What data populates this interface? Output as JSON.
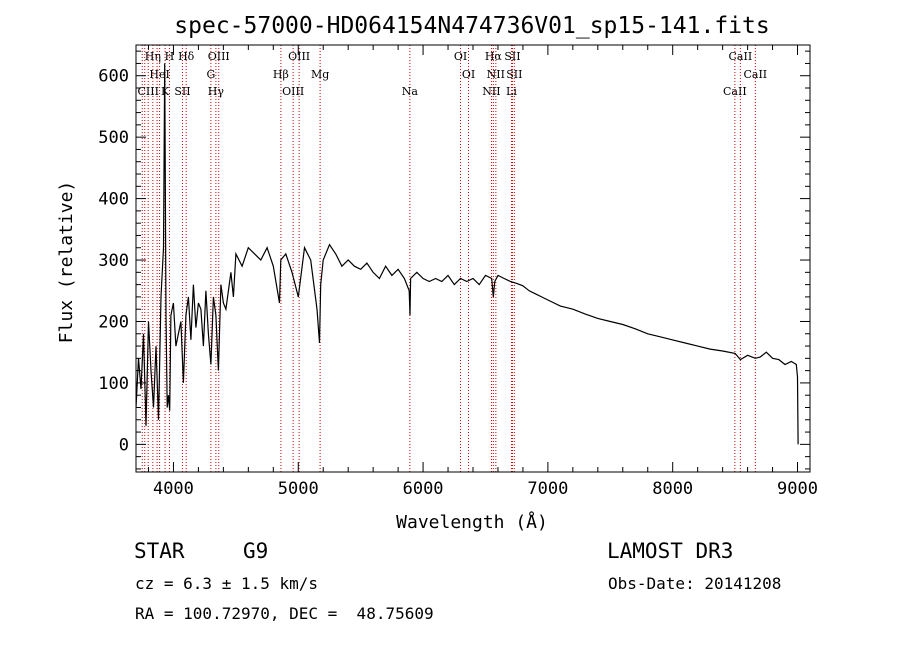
{
  "chart_data": {
    "type": "line",
    "title": "spec-57000-HD064154N474736V01_sp15-141.fits",
    "xlabel": "Wavelength (Å)",
    "ylabel": "Flux (relative)",
    "xlim": [
      3700,
      9100
    ],
    "ylim": [
      -45,
      650
    ],
    "xticks": [
      4000,
      5000,
      6000,
      7000,
      8000,
      9000
    ],
    "yticks": [
      0,
      100,
      200,
      300,
      400,
      500,
      600
    ],
    "series": [
      {
        "name": "spectrum",
        "x": [
          3700,
          3720,
          3740,
          3760,
          3780,
          3800,
          3820,
          3840,
          3860,
          3880,
          3900,
          3920,
          3930,
          3940,
          3950,
          3960,
          3970,
          3980,
          4000,
          4020,
          4040,
          4060,
          4080,
          4100,
          4120,
          4140,
          4160,
          4180,
          4200,
          4220,
          4240,
          4260,
          4280,
          4300,
          4320,
          4340,
          4360,
          4380,
          4400,
          4420,
          4440,
          4460,
          4480,
          4500,
          4550,
          4600,
          4650,
          4700,
          4750,
          4800,
          4850,
          4860,
          4900,
          4950,
          5000,
          5050,
          5100,
          5150,
          5170,
          5180,
          5200,
          5250,
          5300,
          5350,
          5400,
          5450,
          5500,
          5550,
          5600,
          5650,
          5700,
          5750,
          5800,
          5850,
          5889,
          5895,
          5900,
          5950,
          6000,
          6050,
          6100,
          6150,
          6200,
          6250,
          6300,
          6350,
          6400,
          6450,
          6500,
          6550,
          6563,
          6575,
          6600,
          6650,
          6700,
          6750,
          6800,
          6850,
          6900,
          6950,
          7000,
          7100,
          7200,
          7300,
          7400,
          7500,
          7600,
          7700,
          7800,
          7900,
          8000,
          8100,
          8200,
          8300,
          8400,
          8500,
          8542,
          8600,
          8662,
          8700,
          8750,
          8800,
          8850,
          8900,
          8950,
          8990,
          9000,
          9005
        ],
        "values": [
          60,
          140,
          90,
          180,
          30,
          200,
          120,
          60,
          160,
          40,
          240,
          320,
          620,
          210,
          60,
          80,
          55,
          210,
          230,
          160,
          180,
          200,
          100,
          210,
          240,
          170,
          260,
          190,
          230,
          220,
          160,
          250,
          180,
          130,
          240,
          210,
          120,
          260,
          230,
          220,
          250,
          280,
          240,
          310,
          290,
          320,
          310,
          300,
          320,
          290,
          230,
          300,
          310,
          280,
          240,
          320,
          300,
          220,
          165,
          260,
          300,
          325,
          310,
          290,
          300,
          290,
          285,
          295,
          280,
          270,
          290,
          275,
          285,
          270,
          250,
          210,
          270,
          280,
          270,
          265,
          270,
          265,
          275,
          260,
          270,
          265,
          270,
          260,
          275,
          270,
          240,
          265,
          275,
          270,
          265,
          262,
          258,
          250,
          245,
          240,
          235,
          225,
          220,
          212,
          205,
          200,
          195,
          188,
          180,
          175,
          170,
          165,
          160,
          155,
          152,
          148,
          138,
          145,
          140,
          142,
          150,
          140,
          138,
          130,
          135,
          130,
          110,
          0
        ]
      }
    ],
    "reference_lines": [
      {
        "wavelength": 3750,
        "labels": []
      },
      {
        "wavelength": 3770,
        "labels": []
      },
      {
        "wavelength": 3798,
        "labels": [
          "CIII"
        ]
      },
      {
        "wavelength": 3835,
        "labels": [
          "Hη"
        ]
      },
      {
        "wavelength": 3869,
        "labels": []
      },
      {
        "wavelength": 3889,
        "labels": [
          "HeI"
        ]
      },
      {
        "wavelength": 3933,
        "labels": [
          "K"
        ]
      },
      {
        "wavelength": 3968,
        "labels": [
          "H"
        ]
      },
      {
        "wavelength": 4072,
        "labels": [
          "SII"
        ]
      },
      {
        "wavelength": 4102,
        "labels": [
          "Hδ"
        ]
      },
      {
        "wavelength": 4300,
        "labels": [
          "G"
        ]
      },
      {
        "wavelength": 4340,
        "labels": [
          "Hγ"
        ]
      },
      {
        "wavelength": 4363,
        "labels": [
          "OIII"
        ]
      },
      {
        "wavelength": 4861,
        "labels": [
          "Hβ"
        ]
      },
      {
        "wavelength": 4959,
        "labels": [
          "OIII"
        ]
      },
      {
        "wavelength": 5007,
        "labels": [
          "OIII"
        ]
      },
      {
        "wavelength": 5175,
        "labels": [
          "Mg"
        ]
      },
      {
        "wavelength": 5894,
        "labels": [
          "Na"
        ]
      },
      {
        "wavelength": 6300,
        "labels": [
          "OI"
        ]
      },
      {
        "wavelength": 6364,
        "labels": [
          "OI"
        ]
      },
      {
        "wavelength": 6548,
        "labels": [
          "NII"
        ]
      },
      {
        "wavelength": 6563,
        "labels": [
          "Hα"
        ]
      },
      {
        "wavelength": 6583,
        "labels": [
          "NII"
        ]
      },
      {
        "wavelength": 6708,
        "labels": [
          "Li"
        ]
      },
      {
        "wavelength": 6716,
        "labels": [
          "SII"
        ]
      },
      {
        "wavelength": 6731,
        "labels": [
          "SII"
        ]
      },
      {
        "wavelength": 8498,
        "labels": [
          "CaII"
        ]
      },
      {
        "wavelength": 8542,
        "labels": [
          "CaII"
        ]
      },
      {
        "wavelength": 8662,
        "labels": [
          "CaII"
        ]
      }
    ],
    "grid": false,
    "legend": "none"
  },
  "colors": {
    "spectrum": "#000000",
    "reference_line": "#cc0000",
    "axes": "#000000",
    "background": "#ffffff"
  },
  "annotations": {
    "object_class": "STAR",
    "spectral_type": "G9",
    "survey": "LAMOST DR3",
    "redshift": "cz = 6.3 ± 1.5 km/s",
    "obs_date": "Obs-Date: 20141208",
    "coords": "RA = 100.72970, DEC =  48.75609"
  }
}
